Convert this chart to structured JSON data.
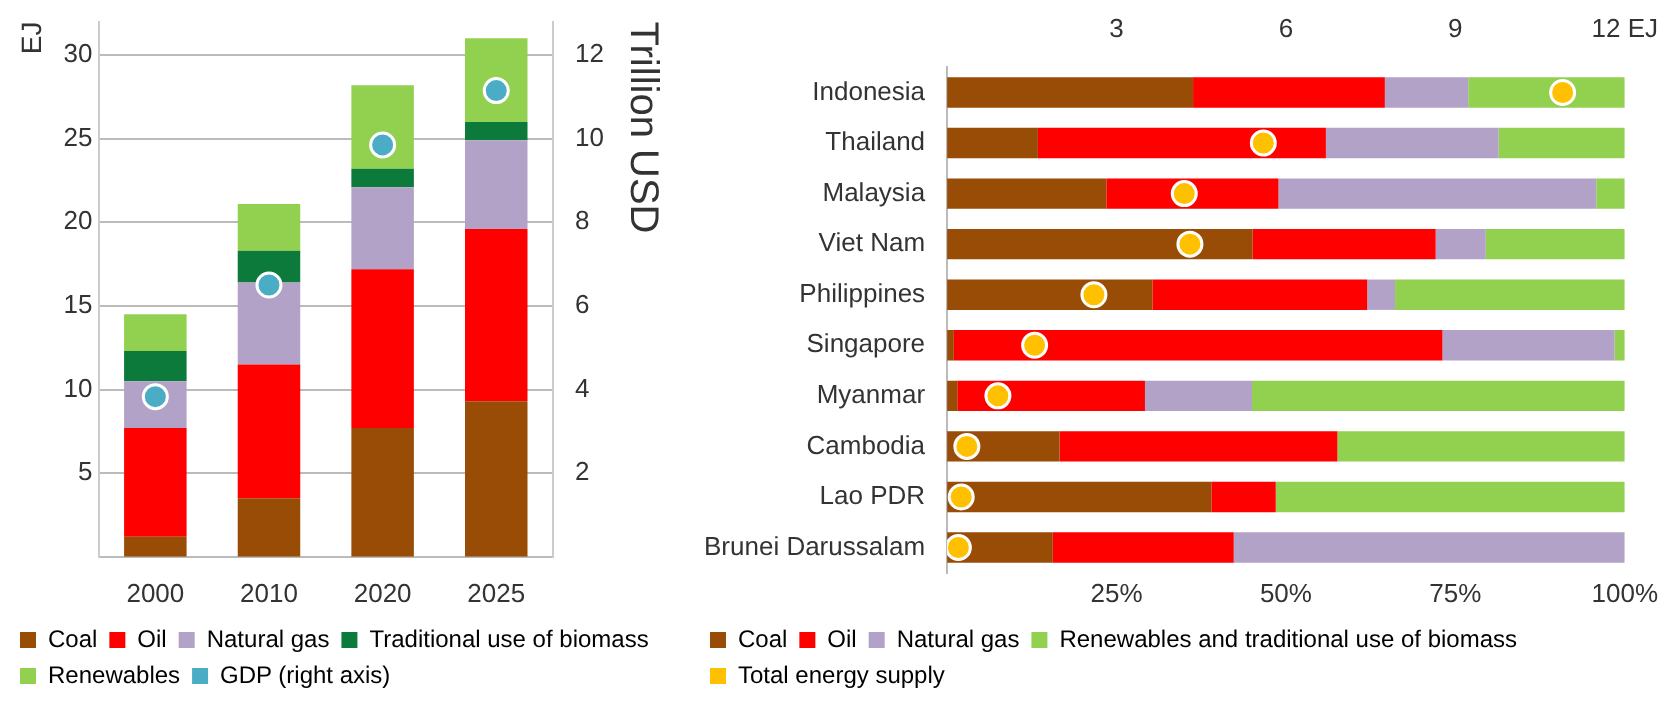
{
  "chart_data": [
    {
      "type": "bar",
      "stacked": true,
      "ylabel": "EJ",
      "y2label": "Trillion USD",
      "categories": [
        "2000",
        "2010",
        "2020",
        "2025"
      ],
      "ylim": [
        0,
        32
      ],
      "yticks": [
        5,
        10,
        15,
        20,
        25,
        30
      ],
      "y2lim": [
        0,
        12.8
      ],
      "y2ticks": [
        2,
        4,
        6,
        8,
        10,
        12
      ],
      "grid": "y",
      "legend": "bottom",
      "marker": "circle",
      "series": [
        {
          "name": "Coal",
          "color": "#994c06",
          "values": [
            1.2,
            3.5,
            7.7,
            9.3
          ]
        },
        {
          "name": "Oil",
          "color": "#ff0000",
          "values": [
            6.5,
            8.0,
            9.5,
            10.3
          ]
        },
        {
          "name": "Natural gas",
          "color": "#b3a2c7",
          "values": [
            2.8,
            4.9,
            4.9,
            5.3
          ]
        },
        {
          "name": "Traditional use of biomass",
          "color": "#0b7a3a",
          "values": [
            1.8,
            1.9,
            1.1,
            1.1
          ]
        },
        {
          "name": "Renewables",
          "color": "#92d050",
          "values": [
            2.2,
            2.8,
            5.0,
            5.0
          ]
        },
        {
          "name": "GDP (right axis)",
          "type": "scatter",
          "axis": "y2",
          "color": "#4bacc6",
          "values": [
            3.83,
            6.5,
            9.85,
            11.15
          ]
        }
      ]
    },
    {
      "type": "bar",
      "stacked": true,
      "orientation": "horizontal",
      "categories": [
        "Indonesia",
        "Thailand",
        "Malaysia",
        "Viet Nam",
        "Philippines",
        "Singapore",
        "Myanmar",
        "Cambodia",
        "Lao PDR",
        "Brunei Darussalam"
      ],
      "xlim": [
        0,
        100
      ],
      "xticks": [
        {
          "value": 25,
          "label": "25%"
        },
        {
          "value": 50,
          "label": "50%"
        },
        {
          "value": 75,
          "label": "75%"
        },
        {
          "value": 100,
          "label": "100%"
        }
      ],
      "x2lim": [
        0,
        12
      ],
      "x2ticks": [
        3,
        6,
        9,
        {
          "value": 12,
          "label": "12 EJ"
        }
      ],
      "legend": "bottom",
      "marker": "circle",
      "series": [
        {
          "name": "Coal",
          "color": "#994c06",
          "values": [
            36.3,
            13.4,
            23.5,
            45.1,
            30.3,
            1.0,
            1.5,
            16.6,
            39.0,
            15.6
          ]
        },
        {
          "name": "Oil",
          "color": "#ff0000",
          "values": [
            28.3,
            42.5,
            25.4,
            27.0,
            31.7,
            72.1,
            27.7,
            41.0,
            9.5,
            26.7
          ]
        },
        {
          "name": "Natural gas",
          "color": "#b3a2c7",
          "values": [
            12.3,
            25.5,
            46.9,
            7.4,
            4.1,
            25.4,
            15.8,
            0,
            0,
            57.7
          ]
        },
        {
          "name": "Renewables and traditional use of biomass",
          "color": "#92d050",
          "values": [
            23.1,
            18.6,
            4.2,
            20.5,
            33.9,
            1.5,
            55.0,
            42.4,
            51.5,
            0
          ]
        },
        {
          "name": "Total energy supply",
          "type": "scatter",
          "axis": "x2",
          "color": "#ffc000",
          "values": [
            10.9,
            5.6,
            4.2,
            4.3,
            2.6,
            1.55,
            0.9,
            0.35,
            0.25,
            0.2
          ]
        }
      ]
    }
  ]
}
